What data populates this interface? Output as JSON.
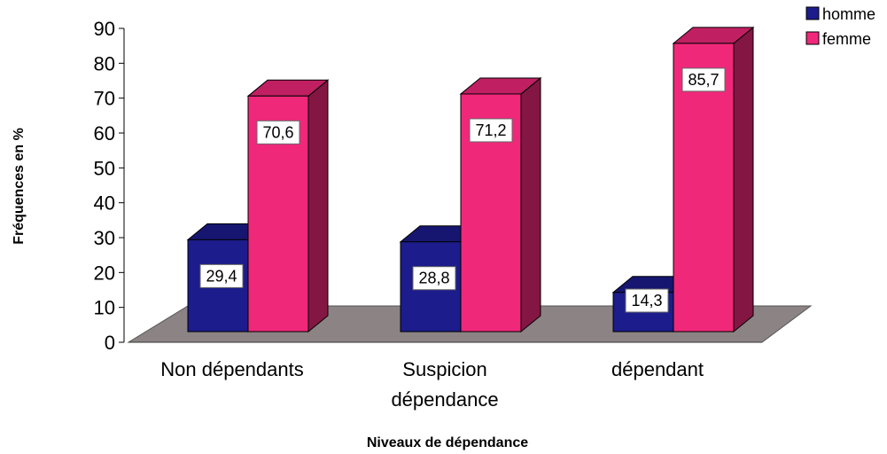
{
  "chart_data": {
    "type": "bar",
    "categories": [
      "Non dépendants",
      "Suspicion dépendance",
      "dépendant"
    ],
    "category_lines": [
      [
        "Non dépendants"
      ],
      [
        "Suspicion",
        "dépendance"
      ],
      [
        "dépendant"
      ]
    ],
    "series": [
      {
        "name": "homme",
        "values": [
          29.4,
          28.8,
          14.3
        ],
        "labels": [
          "29,4",
          "28,8",
          "14,3"
        ],
        "color": "#1c1c8c"
      },
      {
        "name": "femme",
        "values": [
          70.6,
          71.2,
          85.7
        ],
        "labels": [
          "70,6",
          "71,2",
          "85,7"
        ],
        "color": "#f0287a"
      }
    ],
    "xlabel": "Niveaux de dépendance",
    "ylabel": "Fréquences en %",
    "ylim": [
      0,
      90
    ],
    "yticks": [
      0,
      10,
      20,
      30,
      40,
      50,
      60,
      70,
      80,
      90
    ],
    "grid": false,
    "three_d": true,
    "legend_position": "top-right",
    "floor_color": "#8c8484"
  }
}
